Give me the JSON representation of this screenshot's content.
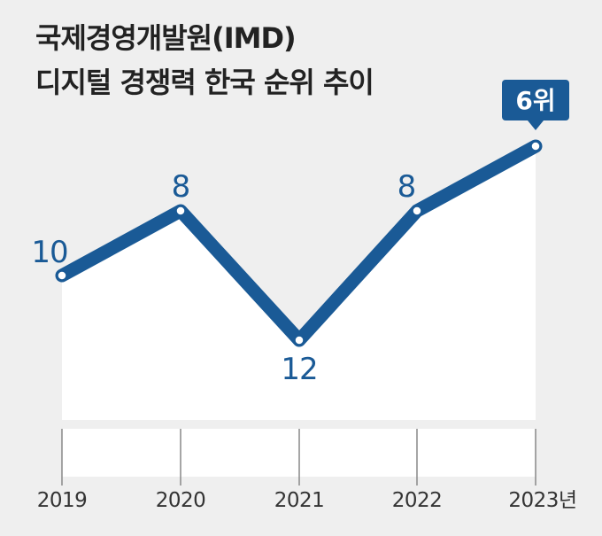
{
  "title": {
    "line1": "국제경영개발원(IMD)",
    "line2": "디지털 경쟁력 한국 순위 추이"
  },
  "colors": {
    "line": "#1a5a96",
    "badge": "#1a5a96",
    "area": "#ffffff",
    "background": "#efefef"
  },
  "chart_data": {
    "type": "line",
    "title": "국제경영개발원(IMD) 디지털 경쟁력 한국 순위 추이",
    "categories": [
      "2019",
      "2020",
      "2021",
      "2022",
      "2023년"
    ],
    "series": [
      {
        "values": [
          10,
          8,
          12,
          8,
          6
        ]
      }
    ],
    "point_labels": [
      "10",
      "8",
      "12",
      "8",
      "6위"
    ],
    "inverted_y": true,
    "grid": false
  }
}
